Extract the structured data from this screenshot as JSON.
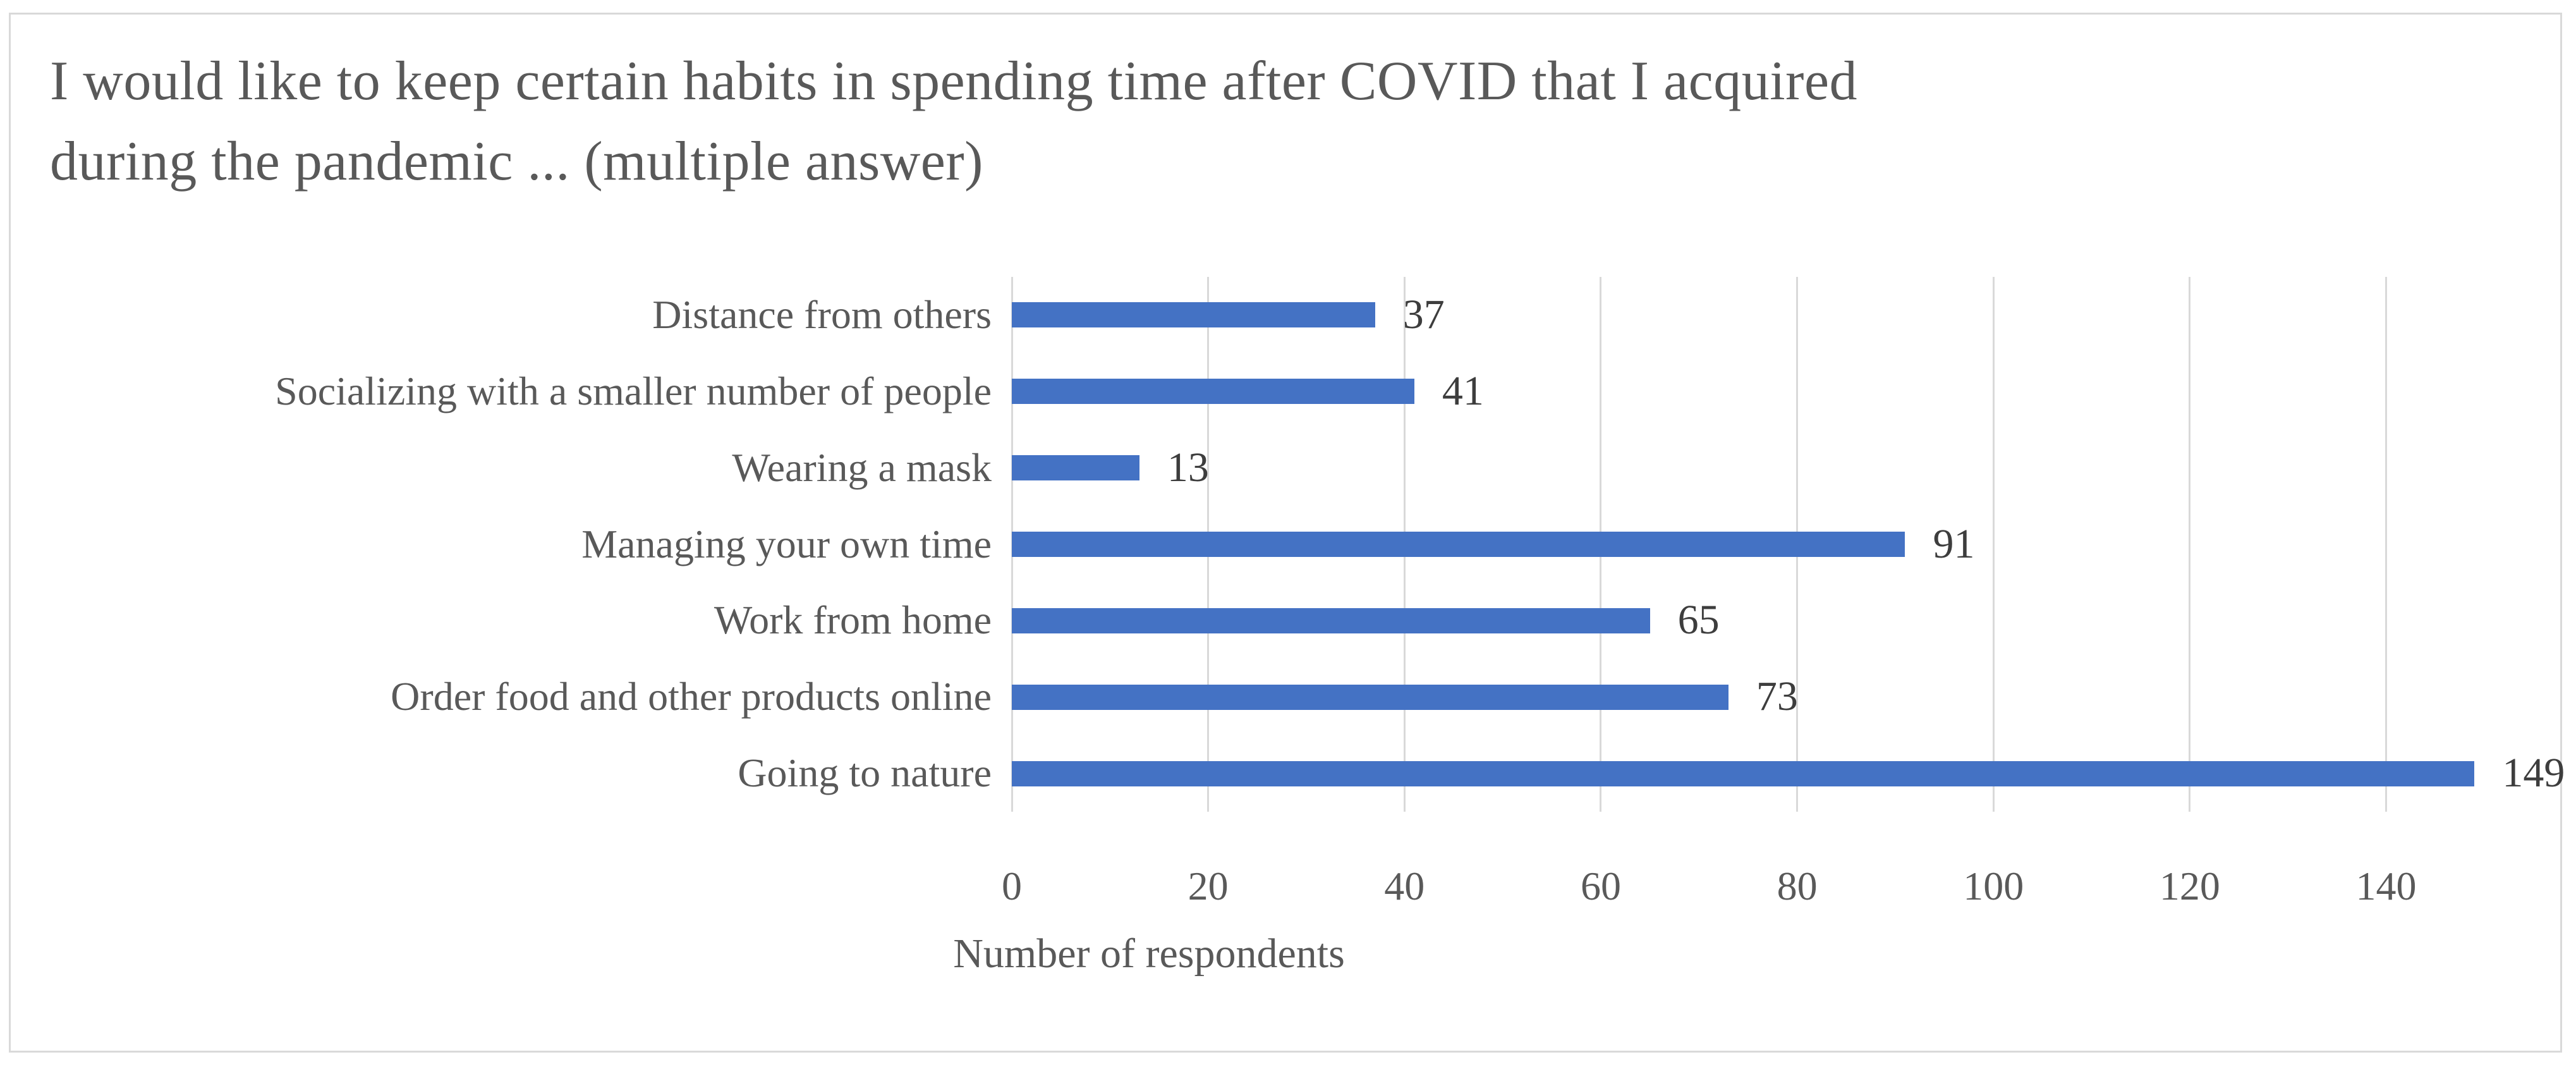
{
  "chart_data": {
    "type": "bar",
    "orientation": "horizontal",
    "title": "I would like to keep certain habits in spending time after COVID that I acquired during the pandemic ... (multiple answer)",
    "xlabel": "Number of respondents",
    "ylabel": "",
    "categories": [
      "Distance from others",
      "Socializing with a smaller number of people",
      "Wearing a mask",
      "Managing your own time",
      "Work from home",
      "Order food and other products online",
      "Going to nature"
    ],
    "values": [
      37,
      41,
      13,
      91,
      65,
      73,
      149
    ],
    "data_labels": [
      37,
      41,
      13,
      91,
      65,
      73,
      149
    ],
    "xticks": [
      0,
      20,
      40,
      60,
      80,
      100,
      120,
      140
    ],
    "xlim": [
      0,
      154
    ],
    "grid": true,
    "legend": false,
    "colors": {
      "bar": "#4472C4",
      "gridline": "#D9D9D9",
      "frame_border": "#D9D9D9",
      "title_text": "#595959",
      "axis_text": "#595959",
      "data_label_text": "#3D3D3D",
      "background": "#FFFFFF"
    }
  }
}
